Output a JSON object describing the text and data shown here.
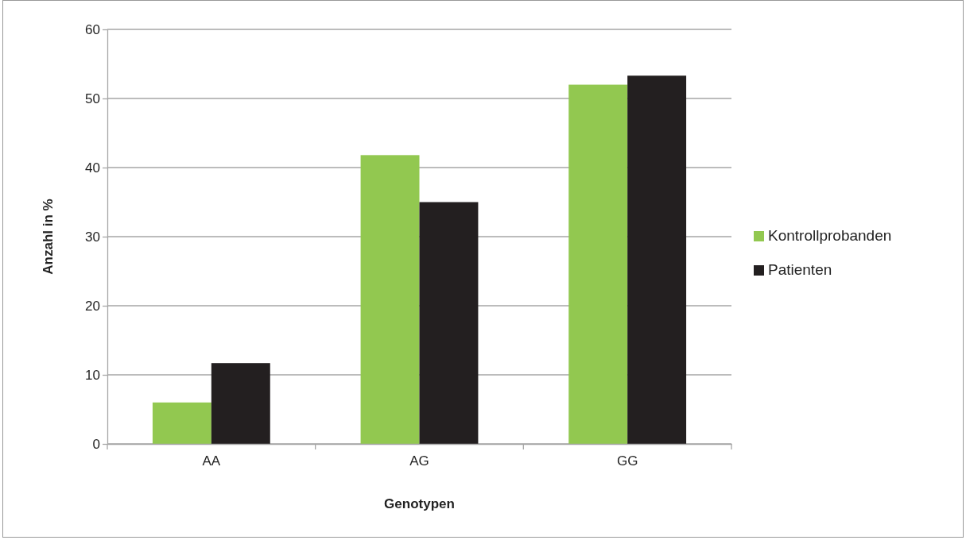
{
  "chart_data": {
    "type": "bar",
    "xlabel": "Genotypen",
    "ylabel": "Anzahl in %",
    "categories": [
      "AA",
      "AG",
      "GG"
    ],
    "series": [
      {
        "name": "Kontrollprobanden",
        "color": "#92c850",
        "values": [
          6.0,
          41.8,
          52.0
        ]
      },
      {
        "name": "Patienten",
        "color": "#231f20",
        "values": [
          11.7,
          35.0,
          53.3
        ]
      }
    ],
    "ylim": [
      0,
      60
    ],
    "yticks": [
      0,
      10,
      20,
      30,
      40,
      50,
      60
    ],
    "grid": "y",
    "legend": "right"
  }
}
